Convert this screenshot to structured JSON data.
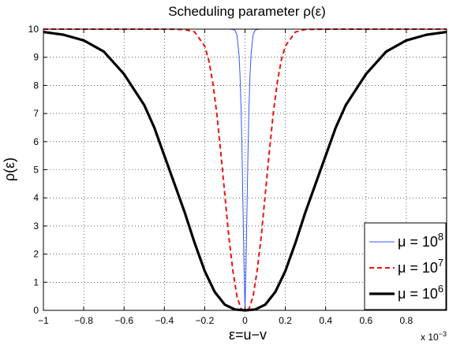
{
  "chart_data": {
    "type": "line",
    "title": "Scheduling parameter ρ(ε)",
    "xlabel": "ε=u−v",
    "ylabel": "ρ(ε)",
    "xlim": [
      -1,
      1
    ],
    "ylim": [
      0,
      10
    ],
    "x_tick_labels": [
      "−1",
      "−0.8",
      "−0.6",
      "−0.4",
      "−0.2",
      "0",
      "0.2",
      "0.4",
      "0.6",
      "0.8"
    ],
    "y_tick_labels": [
      "0",
      "1",
      "2",
      "3",
      "4",
      "5",
      "6",
      "7",
      "8",
      "9",
      "10"
    ],
    "x_multiplier_base": "x 10",
    "x_multiplier_exp": "−3",
    "grid": true,
    "legend_position": "bottom-right",
    "series": [
      {
        "name": "μ = 10^8",
        "legend_base": "μ = 10",
        "legend_exp": "8",
        "color": "#3355ff",
        "style": "solid",
        "x": [
          -1,
          -0.1,
          -0.08,
          -0.06,
          -0.05,
          -0.04,
          -0.03,
          -0.025,
          -0.02,
          -0.015,
          -0.01,
          -0.005,
          0,
          0.005,
          0.01,
          0.015,
          0.02,
          0.025,
          0.03,
          0.04,
          0.05,
          0.06,
          0.08,
          0.1,
          1
        ],
        "y": [
          10,
          10,
          10,
          9.99,
          9.96,
          9.8,
          9.1,
          8.4,
          7.3,
          5.7,
          3.7,
          1.6,
          0,
          1.6,
          3.7,
          5.7,
          7.3,
          8.4,
          9.1,
          9.8,
          9.96,
          9.99,
          10,
          10,
          10
        ]
      },
      {
        "name": "μ = 10^7",
        "legend_base": "μ = 10",
        "legend_exp": "7",
        "color": "#ee1111",
        "style": "dashed",
        "x": [
          -1,
          -0.4,
          -0.3,
          -0.25,
          -0.2,
          -0.18,
          -0.16,
          -0.14,
          -0.12,
          -0.1,
          -0.08,
          -0.06,
          -0.04,
          -0.02,
          0,
          0.02,
          0.04,
          0.06,
          0.08,
          0.1,
          0.12,
          0.14,
          0.16,
          0.18,
          0.2,
          0.25,
          0.3,
          0.4,
          1
        ],
        "y": [
          10,
          10,
          9.99,
          9.9,
          9.4,
          8.9,
          8.1,
          7.0,
          5.6,
          4.1,
          2.6,
          1.4,
          0.5,
          0.05,
          0,
          0.05,
          0.5,
          1.4,
          2.6,
          4.1,
          5.6,
          7.0,
          8.1,
          8.9,
          9.4,
          9.9,
          9.99,
          10,
          10
        ]
      },
      {
        "name": "μ = 10^6",
        "legend_base": "μ = 10",
        "legend_exp": "6",
        "color": "#000000",
        "style": "solid-thick",
        "x": [
          -1,
          -0.9,
          -0.8,
          -0.7,
          -0.6,
          -0.5,
          -0.45,
          -0.4,
          -0.35,
          -0.3,
          -0.25,
          -0.2,
          -0.15,
          -0.1,
          -0.05,
          0,
          0.05,
          0.1,
          0.15,
          0.2,
          0.25,
          0.3,
          0.35,
          0.4,
          0.45,
          0.5,
          0.6,
          0.7,
          0.8,
          0.9,
          1
        ],
        "y": [
          9.9,
          9.8,
          9.6,
          9.2,
          8.4,
          7.3,
          6.5,
          5.5,
          4.5,
          3.5,
          2.4,
          1.4,
          0.65,
          0.2,
          0.03,
          0,
          0.03,
          0.2,
          0.65,
          1.4,
          2.4,
          3.5,
          4.5,
          5.5,
          6.5,
          7.3,
          8.4,
          9.2,
          9.6,
          9.8,
          9.9
        ]
      }
    ]
  }
}
